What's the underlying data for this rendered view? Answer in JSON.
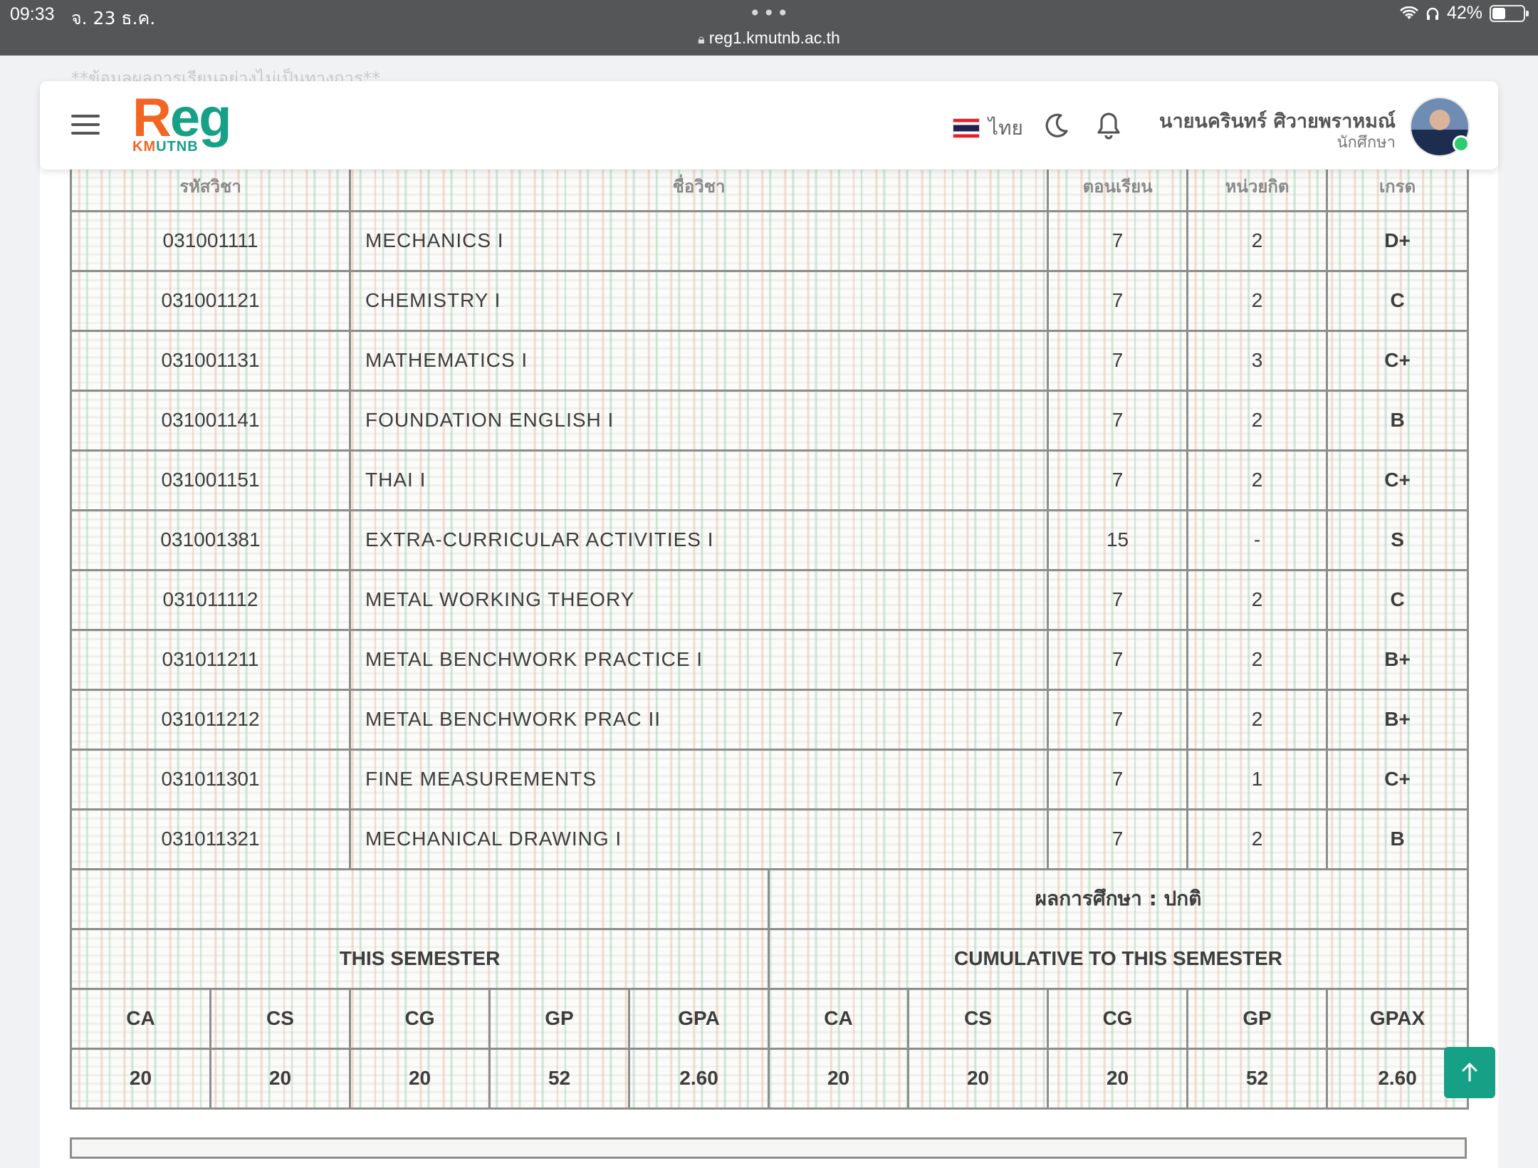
{
  "status_bar": {
    "time": "09:33",
    "date": "จ. 23 ธ.ค.",
    "url": "reg1.kmutnb.ac.th",
    "battery": "42%",
    "battery_level": 0.42
  },
  "ghost_note": "**ข้อมูลผลการเรียนอย่างไม่เป็นทางการ**",
  "header": {
    "logo_main": "Reg",
    "logo_sub": "KMUTNB",
    "language": "ไทย",
    "user_name": "นายนครินทร์ ศิวายพราหมณ์",
    "user_role": "นักศึกษา",
    "icons": [
      "hamburger-icon",
      "thai-flag-icon",
      "moon-icon",
      "bell-icon",
      "avatar"
    ]
  },
  "grades": {
    "columns": {
      "code": "รหัสวิชา",
      "name": "ชื่อวิชา",
      "section": "ตอนเรียน",
      "credit": "หน่วยกิต",
      "grade": "เกรด"
    },
    "rows": [
      {
        "code": "031001111",
        "name": "MECHANICS I",
        "section": "7",
        "credit": "2",
        "grade": "D+"
      },
      {
        "code": "031001121",
        "name": "CHEMISTRY I",
        "section": "7",
        "credit": "2",
        "grade": "C"
      },
      {
        "code": "031001131",
        "name": "MATHEMATICS I",
        "section": "7",
        "credit": "3",
        "grade": "C+"
      },
      {
        "code": "031001141",
        "name": "FOUNDATION ENGLISH I",
        "section": "7",
        "credit": "2",
        "grade": "B"
      },
      {
        "code": "031001151",
        "name": "THAI I",
        "section": "7",
        "credit": "2",
        "grade": "C+"
      },
      {
        "code": "031001381",
        "name": "EXTRA-CURRICULAR ACTIVITIES I",
        "section": "15",
        "credit": "-",
        "grade": "S"
      },
      {
        "code": "031011112",
        "name": "METAL WORKING THEORY",
        "section": "7",
        "credit": "2",
        "grade": "C"
      },
      {
        "code": "031011211",
        "name": "METAL BENCHWORK PRACTICE I",
        "section": "7",
        "credit": "2",
        "grade": "B+"
      },
      {
        "code": "031011212",
        "name": "METAL BENCHWORK PRAC II",
        "section": "7",
        "credit": "2",
        "grade": "B+"
      },
      {
        "code": "031011301",
        "name": "FINE MEASUREMENTS",
        "section": "7",
        "credit": "1",
        "grade": "C+"
      },
      {
        "code": "031011321",
        "name": "MECHANICAL DRAWING I",
        "section": "7",
        "credit": "2",
        "grade": "B"
      }
    ],
    "summary": {
      "status": "ผลการศึกษา : ปกติ",
      "this_semester_label": "THIS SEMESTER",
      "cumulative_label": "CUMULATIVE TO THIS SEMESTER",
      "this_semester": [
        {
          "head": "CA",
          "value": "20"
        },
        {
          "head": "CS",
          "value": "20"
        },
        {
          "head": "CG",
          "value": "20"
        },
        {
          "head": "GP",
          "value": "52"
        },
        {
          "head": "GPA",
          "value": "2.60"
        }
      ],
      "cumulative": [
        {
          "head": "CA",
          "value": "20"
        },
        {
          "head": "CS",
          "value": "20"
        },
        {
          "head": "CG",
          "value": "20"
        },
        {
          "head": "GP",
          "value": "52"
        },
        {
          "head": "GPAX",
          "value": "2.60"
        }
      ]
    }
  },
  "colors": {
    "accent": "#16a085",
    "logo_orange": "#f26522",
    "status_bar": "#555657"
  }
}
